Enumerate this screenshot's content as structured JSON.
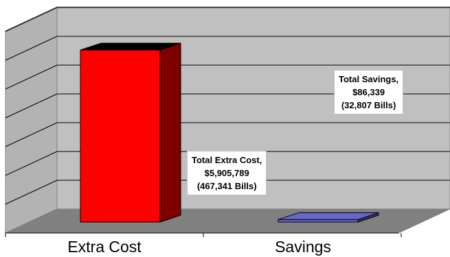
{
  "chart_data": {
    "type": "bar",
    "categories": [
      "Extra Cost",
      "Savings"
    ],
    "series": [
      {
        "values": [
          5905789,
          86339
        ]
      }
    ],
    "data_labels": [
      [
        "Total Extra Cost,",
        "$5,905,789",
        "(467,341 Bills)"
      ],
      [
        "Total Savings,",
        "$86,339",
        "(32,807 Bills)"
      ]
    ],
    "colors": [
      "#ff0000",
      "#6666cc"
    ],
    "grid": true,
    "three_d": true,
    "title": "",
    "xlabel": "",
    "ylabel": ""
  }
}
